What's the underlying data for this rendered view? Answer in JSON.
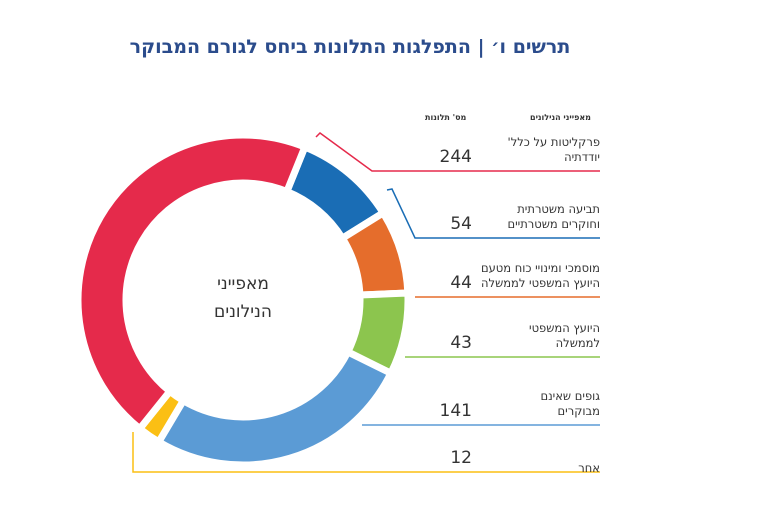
{
  "title": "תרשים ו׳ | התפלגות התלונות ביחס לגורם המבוקר",
  "chart_data": {
    "type": "pie",
    "donut": true,
    "center_label": [
      "מאפייני",
      "הנילונים"
    ],
    "column_headers": {
      "category": "מאפייני הנילונים",
      "value": "מס' תלונות"
    },
    "categories": [
      {
        "label": [
          "תביעה משטרתית",
          "וחוקרים משטרתיים"
        ],
        "value": 54,
        "color": "#1a6db5"
      },
      {
        "label": [
          "מוסמכי ומינויי כוח מטעם",
          "היועץ המשפטי לממשלה"
        ],
        "value": 44,
        "color": "#e56d2c"
      },
      {
        "label": [
          "היועץ המשפטי",
          "לממשלה"
        ],
        "value": 43,
        "color": "#8cc54e"
      },
      {
        "label": [
          "גופים שאינם",
          "מבוקרים"
        ],
        "value": 141,
        "color": "#5b9bd5"
      },
      {
        "label": [
          "אחר"
        ],
        "value": 12,
        "color": "#fbbf14"
      },
      {
        "label": [
          "פרקליטות על כלל'",
          "יודדתיה"
        ],
        "value": 244,
        "color": "#e52a4b"
      }
    ],
    "legend_order": [
      5,
      0,
      1,
      2,
      3,
      4
    ]
  }
}
